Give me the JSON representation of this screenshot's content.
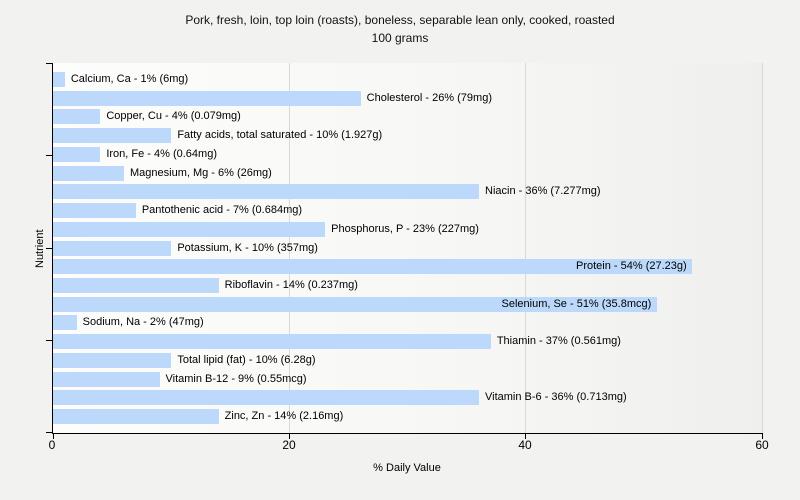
{
  "title": {
    "line1": "Pork, fresh, loin, top loin (roasts), boneless, separable lean only, cooked, roasted",
    "line2": "100 grams"
  },
  "colors": {
    "page_background": "#f2f2f1",
    "plot_background_left": "#fdfdfc",
    "plot_background_right": "#efefed",
    "bar_fill": "#bcd9fb",
    "gridline": "#d9d9d9",
    "axis": "#000000",
    "text": "#000000"
  },
  "chart_data": {
    "type": "bar",
    "orientation": "horizontal",
    "title": "Pork, fresh, loin, top loin (roasts), boneless, separable lean only, cooked, roasted 100 grams",
    "xlabel": "% Daily Value",
    "ylabel": "Nutrient",
    "xlim": [
      0,
      60
    ],
    "x_ticks": [
      "0",
      "20",
      "40",
      "60"
    ],
    "x_tick_values": [
      0,
      20,
      40,
      60
    ],
    "grid": "vertical-at-x-ticks",
    "legend": "none",
    "categories": [
      "Calcium, Ca",
      "Cholesterol",
      "Copper, Cu",
      "Fatty acids, total saturated",
      "Iron, Fe",
      "Magnesium, Mg",
      "Niacin",
      "Pantothenic acid",
      "Phosphorus, P",
      "Potassium, K",
      "Protein",
      "Riboflavin",
      "Selenium, Se",
      "Sodium, Na",
      "Thiamin",
      "Total lipid (fat)",
      "Vitamin B-12",
      "Vitamin B-6",
      "Zinc, Zn"
    ],
    "values": [
      1,
      26,
      4,
      10,
      4,
      6,
      36,
      7,
      23,
      10,
      54,
      14,
      51,
      2,
      37,
      10,
      9,
      36,
      14
    ],
    "amounts": [
      "6mg",
      "79mg",
      "0.079mg",
      "1.927g",
      "0.64mg",
      "26mg",
      "7.277mg",
      "0.684mg",
      "227mg",
      "357mg",
      "27.23g",
      "0.237mg",
      "35.8mcg",
      "47mg",
      "0.561mg",
      "6.28g",
      "0.55mcg",
      "0.713mg",
      "2.16mg"
    ],
    "bar_labels": [
      "Calcium, Ca - 1% (6mg)",
      "Cholesterol - 26% (79mg)",
      "Copper, Cu - 4% (0.079mg)",
      "Fatty acids, total saturated - 10% (1.927g)",
      "Iron, Fe - 4% (0.64mg)",
      "Magnesium, Mg - 6% (26mg)",
      "Niacin - 36% (7.277mg)",
      "Pantothenic acid - 7% (0.684mg)",
      "Phosphorus, P - 23% (227mg)",
      "Potassium, K - 10% (357mg)",
      "Protein - 54% (27.23g)",
      "Riboflavin - 14% (0.237mg)",
      "Selenium, Se - 51% (35.8mcg)",
      "Sodium, Na - 2% (47mg)",
      "Thiamin - 37% (0.561mg)",
      "Total lipid (fat) - 10% (6.28g)",
      "Vitamin B-12 - 9% (0.55mcg)",
      "Vitamin B-6 - 36% (0.713mg)",
      "Zinc, Zn - 14% (2.16mg)"
    ]
  }
}
